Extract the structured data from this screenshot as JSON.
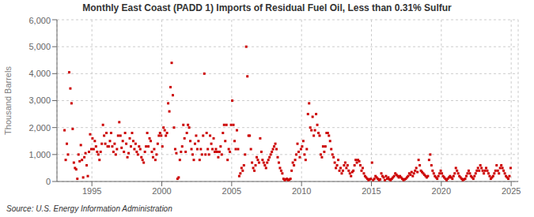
{
  "chart_data": {
    "type": "scatter",
    "title": "Monthly East Coast (PADD 1) Imports of Residual Fuel Oil, Less than 0.31% Sulfur",
    "y_label": "Thousand Barrels",
    "annotations": [
      "Source: U.S. Energy Information Administration"
    ],
    "color": "#cc0000",
    "marker": "square",
    "grid": true,
    "xlim": [
      1992.5,
      2025.5
    ],
    "ylim": [
      0,
      6000
    ],
    "xticks": [
      1995,
      2000,
      2005,
      2010,
      2015,
      2020,
      2025
    ],
    "yticks": [
      0,
      {
        "value": 1000,
        "label": "1,000"
      },
      {
        "value": 2000,
        "label": "2,000"
      },
      {
        "value": 3000,
        "label": "3,000"
      },
      {
        "value": 4000,
        "label": "4,000"
      },
      {
        "value": 5000,
        "label": "5,000"
      },
      {
        "value": 6000,
        "label": "6,000"
      }
    ],
    "x": [
      1993.041667,
      1993.125,
      1993.208333,
      1993.291667,
      1993.375,
      1993.458333,
      1993.541667,
      1993.625,
      1993.708333,
      1993.791667,
      1993.875,
      1993.958333,
      1994.041667,
      1994.125,
      1994.208333,
      1994.291667,
      1994.375,
      1994.458333,
      1994.541667,
      1994.625,
      1994.708333,
      1994.791667,
      1994.875,
      1994.958333,
      1995.041667,
      1995.125,
      1995.208333,
      1995.291667,
      1995.375,
      1995.458333,
      1995.541667,
      1995.625,
      1995.708333,
      1995.791667,
      1995.875,
      1995.958333,
      1996.041667,
      1996.125,
      1996.208333,
      1996.291667,
      1996.375,
      1996.458333,
      1996.541667,
      1996.625,
      1996.708333,
      1996.791667,
      1996.875,
      1996.958333,
      1997.041667,
      1997.125,
      1997.208333,
      1997.291667,
      1997.375,
      1997.458333,
      1997.541667,
      1997.625,
      1997.708333,
      1997.791667,
      1997.875,
      1997.958333,
      1998.041667,
      1998.125,
      1998.208333,
      1998.291667,
      1998.375,
      1998.458333,
      1998.541667,
      1998.625,
      1998.708333,
      1998.791667,
      1998.875,
      1998.958333,
      1999.041667,
      1999.125,
      1999.208333,
      1999.291667,
      1999.375,
      1999.458333,
      1999.541667,
      1999.625,
      1999.708333,
      1999.791667,
      1999.875,
      1999.958333,
      2000.041667,
      2000.125,
      2000.208333,
      2000.291667,
      2000.375,
      2000.458333,
      2000.541667,
      2000.625,
      2000.708333,
      2000.791667,
      2000.875,
      2000.958333,
      2001.041667,
      2001.125,
      2001.208333,
      2001.291667,
      2001.375,
      2001.458333,
      2001.541667,
      2001.625,
      2001.708333,
      2001.791667,
      2001.875,
      2001.958333,
      2002.041667,
      2002.125,
      2002.208333,
      2002.291667,
      2002.375,
      2002.458333,
      2002.541667,
      2002.625,
      2002.708333,
      2002.791667,
      2002.875,
      2002.958333,
      2003.041667,
      2003.125,
      2003.208333,
      2003.291667,
      2003.375,
      2003.458333,
      2003.541667,
      2003.625,
      2003.708333,
      2003.791667,
      2003.875,
      2003.958333,
      2004.041667,
      2004.125,
      2004.208333,
      2004.291667,
      2004.375,
      2004.458333,
      2004.541667,
      2004.625,
      2004.708333,
      2004.791667,
      2004.875,
      2004.958333,
      2005.041667,
      2005.125,
      2005.208333,
      2005.291667,
      2005.375,
      2005.458333,
      2005.541667,
      2005.625,
      2005.708333,
      2005.791667,
      2005.875,
      2005.958333,
      2006.041667,
      2006.125,
      2006.208333,
      2006.291667,
      2006.375,
      2006.458333,
      2006.541667,
      2006.625,
      2006.708333,
      2006.791667,
      2006.875,
      2006.958333,
      2007.041667,
      2007.125,
      2007.208333,
      2007.291667,
      2007.375,
      2007.458333,
      2007.541667,
      2007.625,
      2007.708333,
      2007.791667,
      2007.875,
      2007.958333,
      2008.041667,
      2008.125,
      2008.208333,
      2008.291667,
      2008.375,
      2008.458333,
      2008.541667,
      2008.625,
      2008.708333,
      2008.791667,
      2008.875,
      2008.958333,
      2009.041667,
      2009.125,
      2009.208333,
      2009.291667,
      2009.375,
      2009.458333,
      2009.541667,
      2009.625,
      2009.708333,
      2009.791667,
      2009.875,
      2009.958333,
      2010.041667,
      2010.125,
      2010.208333,
      2010.291667,
      2010.375,
      2010.458333,
      2010.541667,
      2010.625,
      2010.708333,
      2010.791667,
      2010.875,
      2010.958333,
      2011.041667,
      2011.125,
      2011.208333,
      2011.291667,
      2011.375,
      2011.458333,
      2011.541667,
      2011.625,
      2011.708333,
      2011.791667,
      2011.875,
      2011.958333,
      2012.041667,
      2012.125,
      2012.208333,
      2012.291667,
      2012.375,
      2012.458333,
      2012.541667,
      2012.625,
      2012.708333,
      2012.791667,
      2012.875,
      2012.958333,
      2013.041667,
      2013.125,
      2013.208333,
      2013.291667,
      2013.375,
      2013.458333,
      2013.541667,
      2013.625,
      2013.708333,
      2013.791667,
      2013.875,
      2013.958333,
      2014.041667,
      2014.125,
      2014.208333,
      2014.291667,
      2014.375,
      2014.458333,
      2014.541667,
      2014.625,
      2014.708333,
      2014.791667,
      2014.875,
      2014.958333,
      2015.041667,
      2015.125,
      2015.208333,
      2015.291667,
      2015.375,
      2015.458333,
      2015.541667,
      2015.625,
      2015.708333,
      2015.791667,
      2015.875,
      2015.958333,
      2016.041667,
      2016.125,
      2016.208333,
      2016.291667,
      2016.375,
      2016.458333,
      2016.541667,
      2016.625,
      2016.708333,
      2016.791667,
      2016.875,
      2016.958333,
      2017.041667,
      2017.125,
      2017.208333,
      2017.291667,
      2017.375,
      2017.458333,
      2017.541667,
      2017.625,
      2017.708333,
      2017.791667,
      2017.875,
      2017.958333,
      2018.041667,
      2018.125,
      2018.208333,
      2018.291667,
      2018.375,
      2018.458333,
      2018.541667,
      2018.625,
      2018.708333,
      2018.791667,
      2018.875,
      2018.958333,
      2019.041667,
      2019.125,
      2019.208333,
      2019.291667,
      2019.375,
      2019.458333,
      2019.541667,
      2019.625,
      2019.708333,
      2019.791667,
      2019.875,
      2019.958333,
      2020.041667,
      2020.125,
      2020.208333,
      2020.291667,
      2020.375,
      2020.458333,
      2020.541667,
      2020.625,
      2020.708333,
      2020.791667,
      2020.875,
      2020.958333,
      2021.041667,
      2021.125,
      2021.208333,
      2021.291667,
      2021.375,
      2021.458333,
      2021.541667,
      2021.625,
      2021.708333,
      2021.791667,
      2021.875,
      2021.958333,
      2022.041667,
      2022.125,
      2022.208333,
      2022.291667,
      2022.375,
      2022.458333,
      2022.541667,
      2022.625,
      2022.708333,
      2022.791667,
      2022.875,
      2022.958333,
      2023.041667,
      2023.125,
      2023.208333,
      2023.291667,
      2023.375,
      2023.458333,
      2023.541667,
      2023.625,
      2023.708333,
      2023.791667,
      2023.875,
      2023.958333,
      2024.041667,
      2024.125,
      2024.208333,
      2024.291667,
      2024.375,
      2024.458333,
      2024.541667,
      2024.625,
      2024.708333,
      2024.791667,
      2024.875,
      2024.958333
    ],
    "values": [
      1900,
      800,
      1400,
      1000,
      4050,
      3450,
      2900,
      1950,
      700,
      500,
      450,
      100,
      1000,
      750,
      1350,
      800,
      150,
      900,
      1050,
      600,
      200,
      1100,
      1750,
      1200,
      1600,
      1200,
      1500,
      1300,
      1100,
      1000,
      800,
      1100,
      1400,
      2100,
      1700,
      1400,
      1800,
      1300,
      1300,
      1500,
      1800,
      1300,
      1100,
      1400,
      1000,
      1200,
      1700,
      2200,
      1700,
      1250,
      1500,
      1100,
      1800,
      1400,
      900,
      1050,
      1600,
      1300,
      1800,
      1500,
      1200,
      1400,
      1100,
      1000,
      1300,
      1200,
      900,
      800,
      700,
      1100,
      1300,
      1800,
      1300,
      1600,
      1500,
      1100,
      900,
      1200,
      800,
      1000,
      1400,
      1700,
      1800,
      1700,
      1300,
      2000,
      1900,
      1700,
      1800,
      2900,
      2600,
      3500,
      4400,
      3200,
      2000,
      1200,
      1050,
      100,
      150,
      800,
      1100,
      1300,
      2100,
      1600,
      1100,
      1800,
      2100,
      2000,
      1500,
      1200,
      1000,
      800,
      1400,
      1700,
      1200,
      1500,
      800,
      1200,
      1000,
      1700,
      4000,
      1000,
      1800,
      1200,
      1000,
      1700,
      1400,
      1200,
      1600,
      1100,
      1200,
      1100,
      900,
      1100,
      1300,
      1000,
      1800,
      2100,
      1500,
      2100,
      800,
      1200,
      1100,
      2100,
      3000,
      2100,
      1500,
      1200,
      1900,
      1200,
      200,
      300,
      500,
      400,
      600,
      1000,
      5000,
      3900,
      1700,
      1700,
      1200,
      700,
      500,
      400,
      600,
      900,
      800,
      700,
      1600,
      1100,
      800,
      700,
      600,
      500,
      700,
      800,
      900,
      1000,
      1100,
      1200,
      1300,
      1400,
      1200,
      900,
      700,
      500,
      400,
      300,
      100,
      50,
      80,
      100,
      50,
      70,
      100,
      400,
      700,
      600,
      800,
      1000,
      1400,
      1100,
      900,
      1200,
      1300,
      1500,
      1000,
      800,
      1200,
      2500,
      2900,
      2000,
      1900,
      2400,
      1700,
      1900,
      2500,
      2100,
      1800,
      1700,
      1000,
      900,
      1300,
      1100,
      1300,
      1800,
      1800,
      1700,
      1500,
      1200,
      1000,
      900,
      700,
      500,
      600,
      800,
      400,
      500,
      300,
      400,
      600,
      700,
      500,
      600,
      400,
      300,
      200,
      350,
      400,
      600,
      800,
      700,
      800,
      750,
      600,
      400,
      500,
      300,
      200,
      150,
      100,
      50,
      80,
      100,
      700,
      50,
      100,
      200,
      150,
      100,
      50,
      80,
      300,
      200,
      150,
      50,
      200,
      100,
      150,
      80,
      50,
      100,
      150,
      200,
      300,
      250,
      200,
      150,
      200,
      150,
      100,
      50,
      80,
      100,
      150,
      200,
      300,
      250,
      350,
      200,
      300,
      400,
      500,
      350,
      800,
      600,
      400,
      350,
      300,
      250,
      200,
      150,
      200,
      800,
      1000,
      600,
      400,
      300,
      200,
      150,
      100,
      200,
      300,
      400,
      300,
      200,
      150,
      100,
      50,
      100,
      150,
      200,
      150,
      100,
      200,
      300,
      500,
      400,
      300,
      200,
      150,
      100,
      50,
      80,
      100,
      200,
      300,
      400,
      300,
      200,
      150,
      100,
      200,
      300,
      400,
      500,
      400,
      600,
      500,
      400,
      300,
      400,
      500,
      400,
      300,
      200,
      100,
      150,
      200,
      300,
      400,
      600,
      400,
      300,
      500,
      600,
      500,
      400,
      300,
      200,
      150,
      100,
      200,
      500
    ]
  }
}
